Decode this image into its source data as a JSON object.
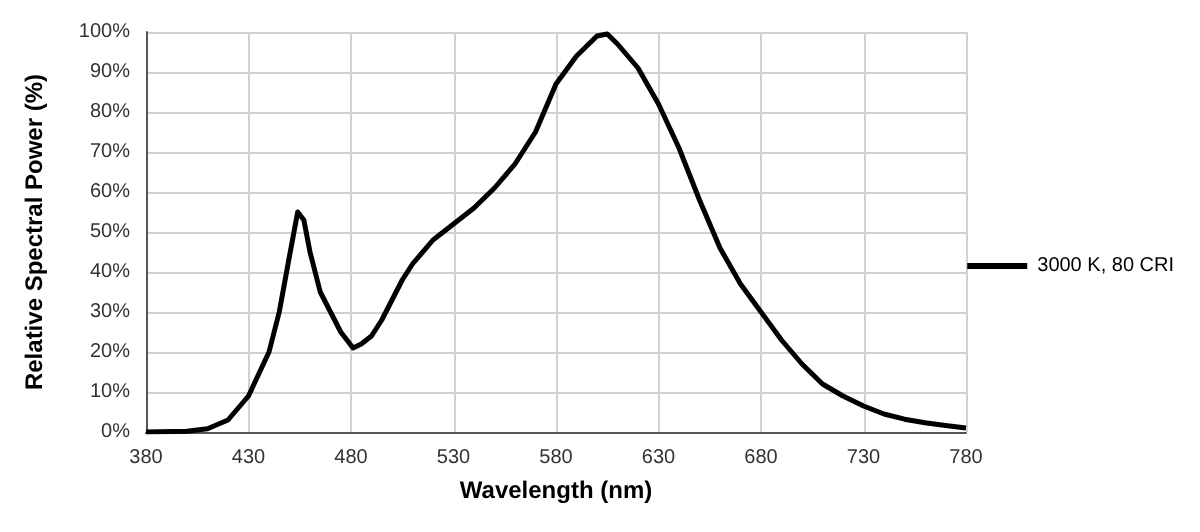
{
  "chart_data": {
    "type": "line",
    "xlabel": "Wavelength (nm)",
    "ylabel": "Relative Spectral Power (%)",
    "xlim": [
      380,
      780
    ],
    "xticks": [
      380,
      430,
      480,
      530,
      580,
      630,
      680,
      730,
      780
    ],
    "ylim": [
      0,
      100
    ],
    "yticks": [
      {
        "value": 0,
        "label": "0%"
      },
      {
        "value": 10,
        "label": "10%"
      },
      {
        "value": 20,
        "label": "20%"
      },
      {
        "value": 30,
        "label": "30%"
      },
      {
        "value": 40,
        "label": "40%"
      },
      {
        "value": 50,
        "label": "50%"
      },
      {
        "value": 60,
        "label": "60%"
      },
      {
        "value": 70,
        "label": "70%"
      },
      {
        "value": 80,
        "label": "80%"
      },
      {
        "value": 90,
        "label": "90%"
      },
      {
        "value": 100,
        "label": "100%"
      }
    ],
    "grid": true,
    "legend": "right",
    "marker": "none",
    "line_style": "solid",
    "x": [
      380,
      400,
      410,
      420,
      430,
      440,
      445,
      450,
      454,
      457,
      460,
      465,
      470,
      475,
      481,
      485,
      490,
      495,
      500,
      505,
      510,
      520,
      530,
      540,
      550,
      560,
      570,
      580,
      590,
      600,
      605,
      610,
      620,
      630,
      640,
      650,
      660,
      670,
      680,
      690,
      700,
      710,
      720,
      730,
      740,
      750,
      760,
      770,
      780
    ],
    "series": [
      {
        "name": "3000 K, 80 CRI",
        "color": "#000000",
        "values": [
          0,
          0.2,
          0.8,
          3,
          9,
          20,
          30,
          44,
          55,
          53,
          45,
          35,
          30,
          25,
          21,
          22,
          24,
          28,
          33,
          38,
          42,
          48,
          52,
          56,
          61,
          67,
          75,
          87,
          94,
          99,
          99.5,
          97,
          91,
          82,
          71,
          58,
          46,
          37,
          30,
          23,
          17,
          12,
          9,
          6.5,
          4.5,
          3.2,
          2.3,
          1.6,
          1
        ]
      }
    ]
  }
}
